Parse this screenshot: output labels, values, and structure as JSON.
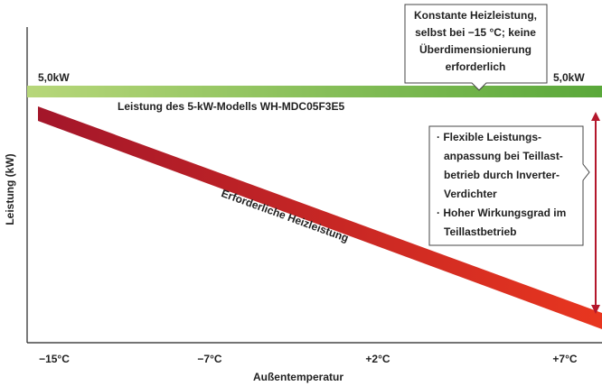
{
  "y_axis_label": "Leistung (kW)",
  "x_axis_label": "Außentemperatur",
  "x_labels": [
    "−15°C",
    "−7°C",
    "+2°C",
    "+7°C"
  ],
  "bar_label_left": "5,0kW",
  "bar_label_right": "5,0kW",
  "bar_caption": "Leistung des 5-kW-Modells WH-MDC05F3E5",
  "callout_lines": [
    "Konstante Heizleistung,",
    "selbst bei −15 °C; keine",
    "Überdimensionierung",
    "erforderlich"
  ],
  "demand_label": "Erforderliche Heizleistung",
  "info_lines": [
    "· Flexible Leistungs-",
    "anpassung bei Teillast-",
    "betrieb durch Inverter-",
    "Verdichter",
    "· Hoher Wirkungsgrad im",
    "Teillastbetrieb"
  ]
}
